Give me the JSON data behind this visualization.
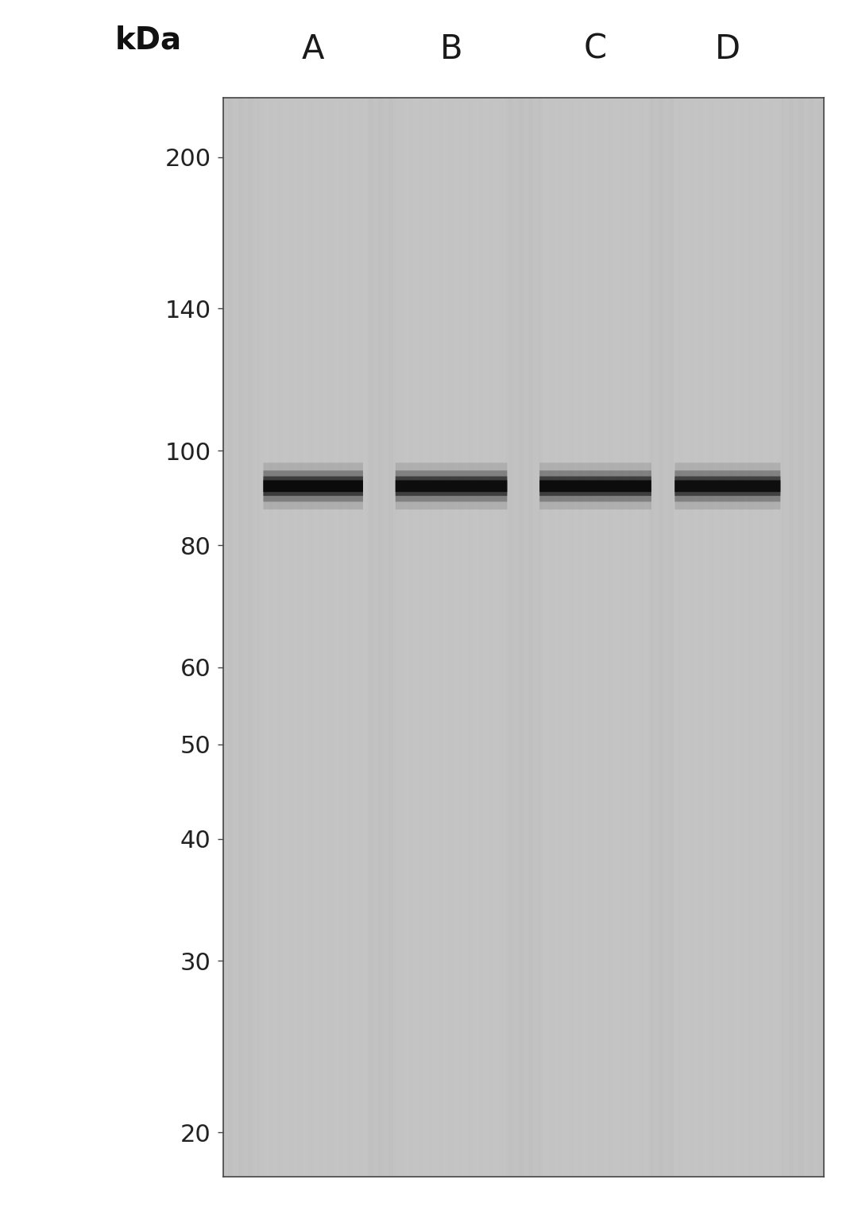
{
  "figure_width": 10.8,
  "figure_height": 15.43,
  "background_color": "#ffffff",
  "blot_bg_color": "#bebebe",
  "lane_labels": [
    "A",
    "B",
    "C",
    "D"
  ],
  "kda_label": "kDa",
  "marker_values": [
    200,
    140,
    100,
    80,
    60,
    50,
    40,
    30,
    20
  ],
  "band_kda": 92,
  "band_color": "#0a0a0a",
  "band_color_light": "#2a2a2a",
  "ylabel_color": "#222222",
  "blot_area_color": "#c0c0c0",
  "border_color": "#444444",
  "stripe_light": "#cacaca",
  "stripe_dark": "#b8b8b8"
}
